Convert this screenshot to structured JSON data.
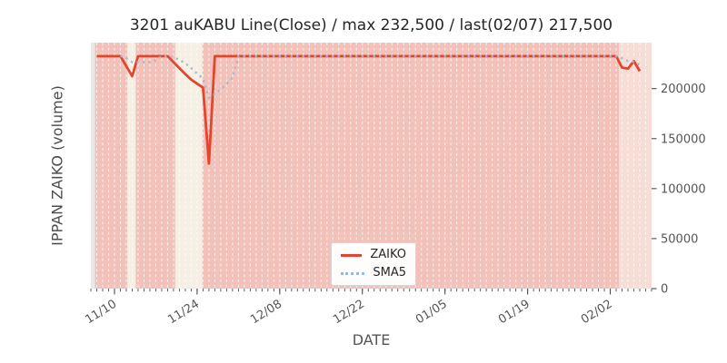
{
  "chart": {
    "title": "3201 auKABU Line(Close) / max 232,500 / last(02/07) 217,500",
    "xlabel": "DATE",
    "ylabel": "IPPAN ZAIKO (volume)"
  },
  "legend": {
    "items": [
      {
        "label": "ZAIKO",
        "color": "#e2462e",
        "style": "solid"
      },
      {
        "label": "SMA5",
        "color": "#9cb8d4",
        "style": "dotted"
      }
    ]
  },
  "chart_data": {
    "type": "line",
    "title": "3201 auKABU Line(Close) / max 232,500 / last(02/07) 217,500",
    "xlabel": "DATE",
    "ylabel": "IPPAN ZAIKO (volume)",
    "stats": {
      "max": 232500,
      "last_date": "02/07",
      "last_value": 217500
    },
    "xlim_days": [
      0,
      95
    ],
    "x_start_date": "11/06",
    "x_ticks": [
      {
        "label": "11/10",
        "day": 4
      },
      {
        "label": "11/24",
        "day": 18
      },
      {
        "label": "12/08",
        "day": 32
      },
      {
        "label": "12/22",
        "day": 46
      },
      {
        "label": "01/05",
        "day": 60
      },
      {
        "label": "01/19",
        "day": 74
      },
      {
        "label": "02/02",
        "day": 88
      }
    ],
    "ylim": [
      0,
      246000
    ],
    "y_ticks": [
      0,
      50000,
      100000,
      150000,
      200000
    ],
    "grid": "daily-vertical-dashed-white",
    "plot_bg": "#e8e8e6",
    "bands": [
      {
        "from_day": 0.7,
        "to_day": 6.2,
        "color": "#f2c2ba"
      },
      {
        "from_day": 6.2,
        "to_day": 7.6,
        "color": "#f5efe4"
      },
      {
        "from_day": 7.6,
        "to_day": 14.3,
        "color": "#f2c2ba"
      },
      {
        "from_day": 14.3,
        "to_day": 18.9,
        "color": "#f5efe4"
      },
      {
        "from_day": 18.9,
        "to_day": 89.5,
        "color": "#f2c2ba"
      },
      {
        "from_day": 89.5,
        "to_day": 95,
        "color": "#f6ddd6"
      }
    ],
    "series": [
      {
        "name": "ZAIKO",
        "color": "#e2462e",
        "style": "solid",
        "keypoints": [
          {
            "date": "11/07",
            "day": 1,
            "value": 232500
          },
          {
            "date": "11/11",
            "day": 5,
            "value": 232500
          },
          {
            "date": "11/12",
            "day": 6,
            "value": 222500
          },
          {
            "date": "11/13",
            "day": 7,
            "value": 212500
          },
          {
            "date": "11/14",
            "day": 8,
            "value": 232500
          },
          {
            "date": "11/19",
            "day": 13,
            "value": 232500
          },
          {
            "date": "11/20",
            "day": 14,
            "value": 226500
          },
          {
            "date": "11/21",
            "day": 15,
            "value": 220500
          },
          {
            "date": "11/22",
            "day": 16,
            "value": 214500
          },
          {
            "date": "11/23",
            "day": 17,
            "value": 209000
          },
          {
            "date": "11/24",
            "day": 18,
            "value": 205000
          },
          {
            "date": "11/25",
            "day": 19,
            "value": 201000
          },
          {
            "date": "11/26",
            "day": 20,
            "value": 125000
          },
          {
            "date": "11/27",
            "day": 21,
            "value": 232500
          },
          {
            "date": "02/02",
            "day": 88,
            "value": 232500
          },
          {
            "date": "02/03",
            "day": 89,
            "value": 232500
          },
          {
            "date": "02/04",
            "day": 90,
            "value": 221000
          },
          {
            "date": "02/05",
            "day": 91,
            "value": 220000
          },
          {
            "date": "02/06",
            "day": 92,
            "value": 227500
          },
          {
            "date": "02/07",
            "day": 93,
            "value": 217500
          }
        ]
      },
      {
        "name": "SMA5",
        "color": "#9cb8d4",
        "style": "dotted",
        "derived": "5-day moving average of ZAIKO"
      }
    ]
  }
}
